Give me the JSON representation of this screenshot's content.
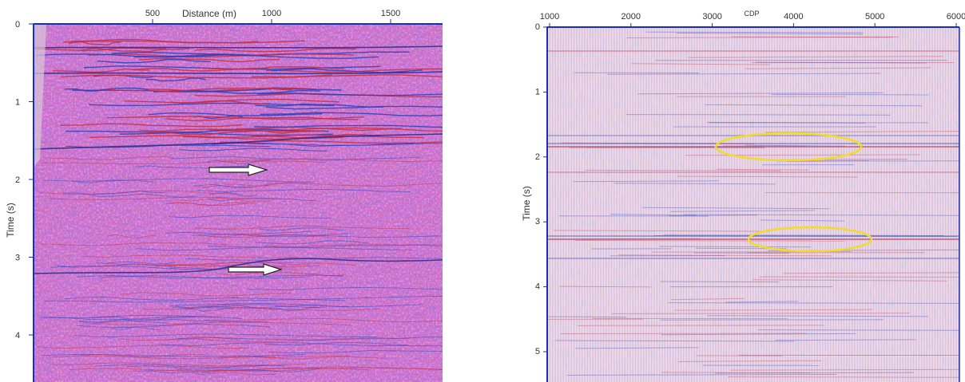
{
  "panels": [
    {
      "id": "left",
      "x_axis": {
        "title": "Distance (m)",
        "ticks": [
          "500",
          "1000",
          "1500"
        ]
      },
      "y_axis": {
        "title": "Time (s)",
        "ticks": [
          "0",
          "1",
          "2",
          "3",
          "4"
        ]
      },
      "annotations": [
        "arrow",
        "arrow"
      ]
    },
    {
      "id": "right",
      "x_axis": {
        "title": "CDP",
        "ticks": [
          "1000",
          "2000",
          "3000",
          "4000",
          "5000",
          "6000"
        ]
      },
      "y_axis": {
        "title": "Time (s)",
        "ticks": [
          "0",
          "1",
          "2",
          "3",
          "4",
          "5"
        ]
      },
      "annotations": [
        "ellipse",
        "ellipse"
      ]
    }
  ],
  "colors": {
    "axis": "#1a2fb0",
    "positive_amplitude": "#c0304a",
    "negative_amplitude": "#2c3fb5",
    "background": "#ffffff",
    "highlight_ellipse": "#f0dc2a",
    "arrow": "#333333"
  }
}
